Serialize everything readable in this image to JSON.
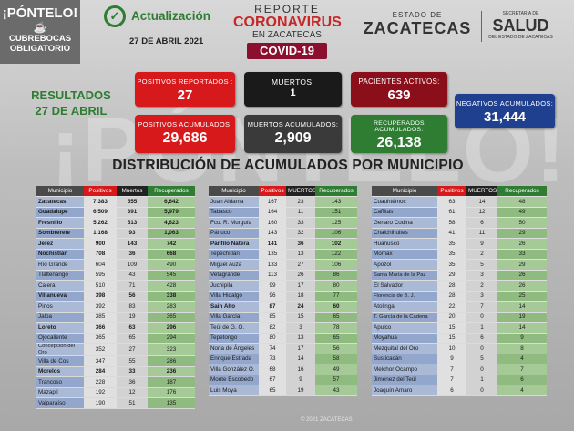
{
  "header": {
    "pontelo_title": "¡PÓNTELO!",
    "pontelo_sub1": "CUBREBOCAS",
    "pontelo_sub2": "OBLIGATORIO",
    "update_label": "Actualización",
    "update_date": "27 DE ABRIL 2021",
    "report_line1": "REPORTE",
    "report_line2": "CORONAVIRUS",
    "report_line3": "EN ZACATECAS",
    "report_badge": "COVID-19",
    "state_small": "ESTADO DE",
    "state_name": "ZACATECAS",
    "salud_small": "SECRETARÍA DE",
    "salud_name": "SALUD",
    "salud_sub": "DEL ESTADO DE ZACATECAS"
  },
  "results": {
    "line1": "RESULTADOS",
    "line2": "27 DE ABRIL"
  },
  "stats": {
    "positivos_reportados": {
      "label": "POSITIVOS REPORTADOS :",
      "value": "27"
    },
    "muertos": {
      "label": "MUERTOS:",
      "value": "1"
    },
    "pacientes_activos": {
      "label": "PACIENTES ACTIVOS:",
      "value": "639"
    },
    "negativos_acumulados": {
      "label": "NEGATIVOS ACUMULADOS:",
      "value": "31,444"
    },
    "positivos_acumulados": {
      "label": "POSITIVOS ACUMULADOS:",
      "value": "29,686"
    },
    "muertos_acumulados": {
      "label": "MUERTOS ACUMULADOS:",
      "value": "2,909"
    },
    "recuperados_acumulados": {
      "label": "RECUPERADOS ACUMULADOS:",
      "value": "26,138"
    }
  },
  "distribution_title": "DISTRIBUCIÓN DE ACUMULADOS POR MUNICIPIO",
  "watermark": "¡PÓNTELO!",
  "tables": [
    {
      "headers": [
        "Municipio",
        "Positivos",
        "Muertos",
        "Recuperados"
      ],
      "rows": [
        [
          "Zacatecas",
          "7,383",
          "555",
          "6,642",
          true
        ],
        [
          "Guadalupe",
          "6,509",
          "391",
          "5,979",
          true
        ],
        [
          "Fresnillo",
          "5,262",
          "513",
          "4,623",
          true
        ],
        [
          "Sombrerete",
          "1,168",
          "93",
          "1,063",
          true
        ],
        [
          "Jerez",
          "900",
          "143",
          "742",
          true
        ],
        [
          "Nochistlán",
          "708",
          "36",
          "668",
          true
        ],
        [
          "Río Grande",
          "604",
          "109",
          "490",
          false
        ],
        [
          "Tlaltenango",
          "595",
          "43",
          "545",
          false
        ],
        [
          "Calera",
          "510",
          "71",
          "428",
          false
        ],
        [
          "Villanueva",
          "398",
          "56",
          "338",
          true
        ],
        [
          "Pinos",
          "392",
          "83",
          "283",
          false
        ],
        [
          "Jalpa",
          "385",
          "19",
          "365",
          false
        ],
        [
          "Loreto",
          "366",
          "63",
          "296",
          true
        ],
        [
          "Ojocaliente",
          "365",
          "65",
          "294",
          false
        ],
        [
          "Concepción del Oro",
          "352",
          "27",
          "323",
          false
        ],
        [
          "Villa de Cos",
          "347",
          "55",
          "286",
          false
        ],
        [
          "Morelos",
          "284",
          "33",
          "236",
          true
        ],
        [
          "Trancoso",
          "228",
          "36",
          "187",
          false
        ],
        [
          "Mazapil",
          "192",
          "12",
          "176",
          false
        ],
        [
          "Valparaíso",
          "190",
          "51",
          "135",
          false
        ]
      ]
    },
    {
      "headers": [
        "Municipio",
        "Positivos",
        "MUERTOS",
        "Recuperados"
      ],
      "rows": [
        [
          "Juan Aldama",
          "167",
          "23",
          "143",
          false
        ],
        [
          "Tabasco",
          "164",
          "11",
          "151",
          false
        ],
        [
          "Fco. R. Murguía",
          "160",
          "33",
          "125",
          false
        ],
        [
          "Pánuco",
          "143",
          "32",
          "106",
          false
        ],
        [
          "Pánfilo Natera",
          "141",
          "36",
          "102",
          true
        ],
        [
          "Tepechitlán",
          "135",
          "13",
          "122",
          false
        ],
        [
          "Miguel Auza",
          "133",
          "27",
          "106",
          false
        ],
        [
          "Vetagrande",
          "113",
          "26",
          "86",
          false
        ],
        [
          "Juchipila",
          "99",
          "17",
          "80",
          false
        ],
        [
          "Villa Hidalgo",
          "96",
          "18",
          "77",
          false
        ],
        [
          "Sain Alto",
          "87",
          "24",
          "60",
          true
        ],
        [
          "Villa García",
          "85",
          "15",
          "65",
          false
        ],
        [
          "Teúl de G. O.",
          "82",
          "3",
          "78",
          false
        ],
        [
          "Tepetongo",
          "80",
          "13",
          "65",
          false
        ],
        [
          "Noria de Ángeles",
          "74",
          "17",
          "56",
          false
        ],
        [
          "Enrique Estrada",
          "73",
          "14",
          "58",
          false
        ],
        [
          "Villa González O.",
          "68",
          "16",
          "49",
          false
        ],
        [
          "Monte Escobedo",
          "67",
          "9",
          "57",
          false
        ],
        [
          "Luis Moya",
          "65",
          "19",
          "43",
          false
        ]
      ]
    },
    {
      "headers": [
        "Municipio",
        "Positivos",
        "MUERTOS",
        "Recuperados"
      ],
      "rows": [
        [
          "Cuauhtémoc",
          "63",
          "14",
          "48",
          false
        ],
        [
          "Cañitas",
          "61",
          "12",
          "49",
          false
        ],
        [
          "Genaro Codina",
          "58",
          "6",
          "50",
          false
        ],
        [
          "Chalchihuites",
          "41",
          "11",
          "29",
          false
        ],
        [
          "Huanusco",
          "35",
          "9",
          "26",
          false
        ],
        [
          "Momax",
          "35",
          "2",
          "33",
          false
        ],
        [
          "Apozol",
          "35",
          "5",
          "29",
          false
        ],
        [
          "Santa María de la Paz",
          "29",
          "3",
          "26",
          false
        ],
        [
          "El Salvador",
          "28",
          "2",
          "26",
          false
        ],
        [
          "Florencia de B. J.",
          "28",
          "3",
          "25",
          false
        ],
        [
          "Atolinga",
          "22",
          "7",
          "14",
          false
        ],
        [
          "T. García de la Cadena",
          "20",
          "0",
          "19",
          false
        ],
        [
          "Apulco",
          "15",
          "1",
          "14",
          false
        ],
        [
          "Moyahua",
          "15",
          "6",
          "9",
          false
        ],
        [
          "Mezquital del Oro",
          "10",
          "0",
          "8",
          false
        ],
        [
          "Susticacán",
          "9",
          "5",
          "4",
          false
        ],
        [
          "Melchor Ocampo",
          "7",
          "0",
          "7",
          false
        ],
        [
          "Jiménez del Teúl",
          "7",
          "1",
          "6",
          false
        ],
        [
          "Joaquín Amaro",
          "6",
          "0",
          "4",
          false
        ]
      ]
    }
  ],
  "footer": "© 2021 ZACATECAS"
}
